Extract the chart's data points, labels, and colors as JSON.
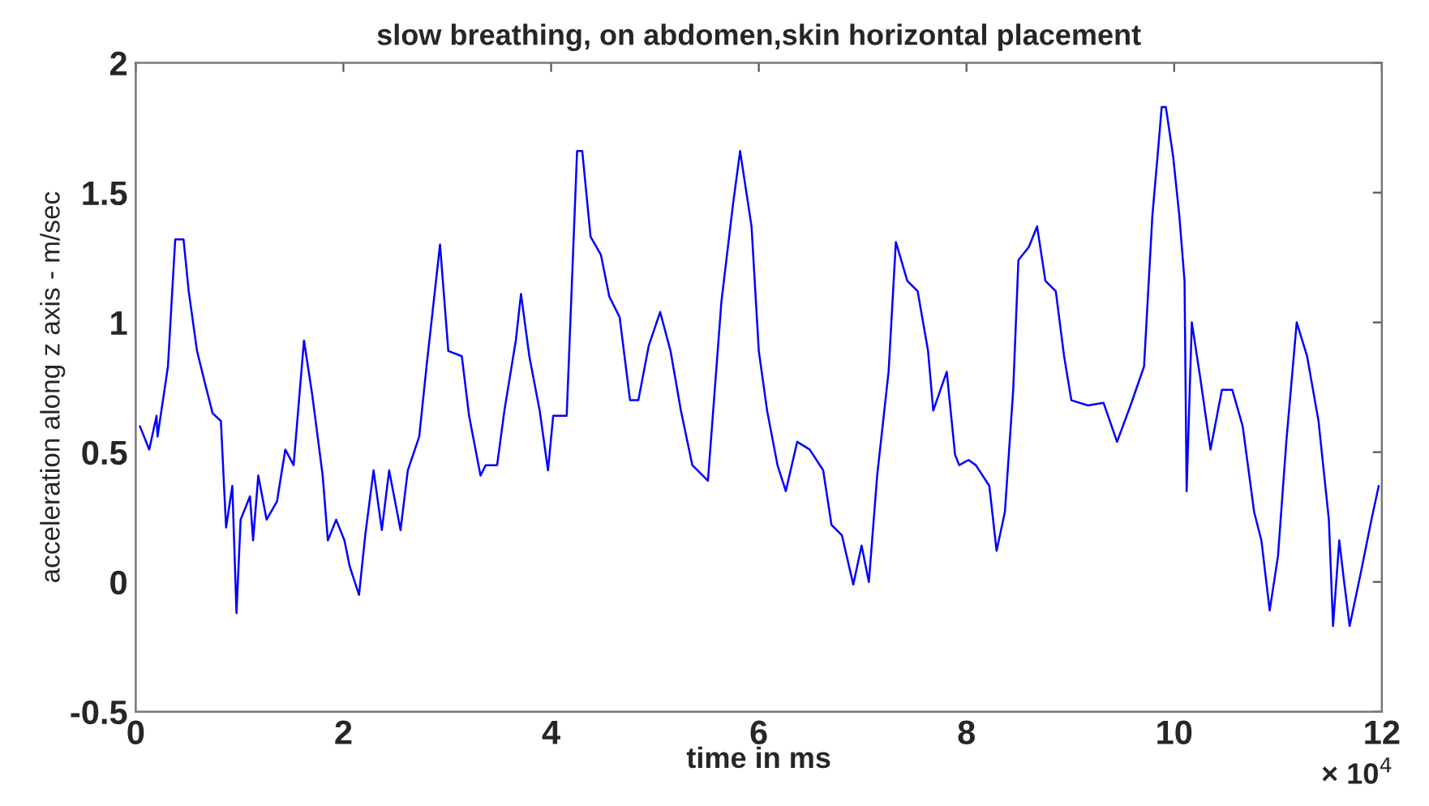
{
  "chart_data": {
    "type": "line",
    "title": "slow breathing, on abdomen,skin horizontal placement",
    "xlabel": "time in ms",
    "ylabel": "acceleration along z axis - m/sec",
    "annotations": [
      "× 10$^{4}$"
    ],
    "xlim": [
      0,
      12
    ],
    "xticks": [
      0,
      2,
      4,
      6,
      8,
      10,
      12
    ],
    "ylim": [
      -0.5,
      2
    ],
    "yticks": [
      {
        "value": -0.5,
        "label": "-0.5"
      },
      0,
      0.5,
      1,
      1.5,
      2
    ],
    "grid": false,
    "marker": "none",
    "line_style": "solid",
    "series": [
      {
        "color": "#0000ff",
        "x": [
          0.04,
          0.13,
          0.2,
          0.21,
          0.31,
          0.38,
          0.46,
          0.51,
          0.59,
          0.67,
          0.74,
          0.82,
          0.85,
          0.87,
          0.93,
          0.97,
          1.01,
          1.1,
          1.13,
          1.18,
          1.26,
          1.36,
          1.44,
          1.52,
          1.62,
          1.7,
          1.8,
          1.85,
          1.93,
          2.01,
          2.06,
          2.15,
          2.21,
          2.29,
          2.37,
          2.44,
          2.55,
          2.62,
          2.73,
          2.8,
          2.93,
          3.01,
          3.14,
          3.21,
          3.32,
          3.37,
          3.48,
          3.55,
          3.66,
          3.71,
          3.79,
          3.89,
          3.97,
          4.02,
          4.15,
          4.25,
          4.3,
          4.38,
          4.48,
          4.56,
          4.66,
          4.76,
          4.84,
          4.94,
          5.05,
          5.15,
          5.25,
          5.36,
          5.51,
          5.64,
          5.75,
          5.82,
          5.93,
          6.0,
          6.08,
          6.18,
          6.26,
          6.37,
          6.49,
          6.62,
          6.7,
          6.8,
          6.91,
          6.99,
          7.06,
          7.14,
          7.25,
          7.32,
          7.43,
          7.53,
          7.63,
          7.68,
          7.81,
          7.89,
          7.93,
          8.02,
          8.09,
          8.22,
          8.29,
          8.37,
          8.45,
          8.5,
          8.6,
          8.68,
          8.76,
          8.86,
          8.94,
          9.01,
          9.17,
          9.32,
          9.45,
          9.58,
          9.71,
          9.79,
          9.84,
          9.88,
          9.92,
          9.99,
          10.05,
          10.1,
          10.12,
          10.17,
          10.25,
          10.35,
          10.46,
          10.56,
          10.66,
          10.77,
          10.84,
          10.92,
          11.0,
          11.08,
          11.18,
          11.28,
          11.39,
          11.49,
          11.53,
          11.59,
          11.64,
          11.69,
          11.8,
          11.9,
          11.97
        ],
        "values": [
          0.6,
          0.51,
          0.64,
          0.56,
          0.83,
          1.32,
          1.32,
          1.12,
          0.89,
          0.76,
          0.65,
          0.62,
          0.37,
          0.21,
          0.37,
          -0.12,
          0.24,
          0.33,
          0.16,
          0.41,
          0.24,
          0.31,
          0.51,
          0.45,
          0.93,
          0.72,
          0.41,
          0.16,
          0.24,
          0.16,
          0.06,
          -0.05,
          0.18,
          0.43,
          0.2,
          0.43,
          0.2,
          0.43,
          0.56,
          0.83,
          1.3,
          0.89,
          0.87,
          0.64,
          0.41,
          0.45,
          0.45,
          0.66,
          0.93,
          1.11,
          0.87,
          0.66,
          0.43,
          0.64,
          0.64,
          1.66,
          1.66,
          1.33,
          1.26,
          1.1,
          1.02,
          0.7,
          0.7,
          0.91,
          1.04,
          0.89,
          0.66,
          0.45,
          0.39,
          1.08,
          1.45,
          1.66,
          1.37,
          0.89,
          0.66,
          0.45,
          0.35,
          0.54,
          0.51,
          0.43,
          0.22,
          0.18,
          -0.01,
          0.14,
          0.0,
          0.41,
          0.81,
          1.31,
          1.16,
          1.12,
          0.89,
          0.66,
          0.81,
          0.49,
          0.45,
          0.47,
          0.45,
          0.37,
          0.12,
          0.27,
          0.74,
          1.24,
          1.29,
          1.37,
          1.16,
          1.12,
          0.87,
          0.7,
          0.68,
          0.69,
          0.54,
          0.68,
          0.83,
          1.41,
          1.64,
          1.83,
          1.83,
          1.64,
          1.41,
          1.16,
          0.35,
          1.0,
          0.79,
          0.51,
          0.74,
          0.74,
          0.6,
          0.27,
          0.16,
          -0.11,
          0.1,
          0.54,
          1.0,
          0.87,
          0.62,
          0.24,
          -0.17,
          0.16,
          -0.01,
          -0.17,
          0.04,
          0.24,
          0.37
        ]
      }
    ]
  }
}
